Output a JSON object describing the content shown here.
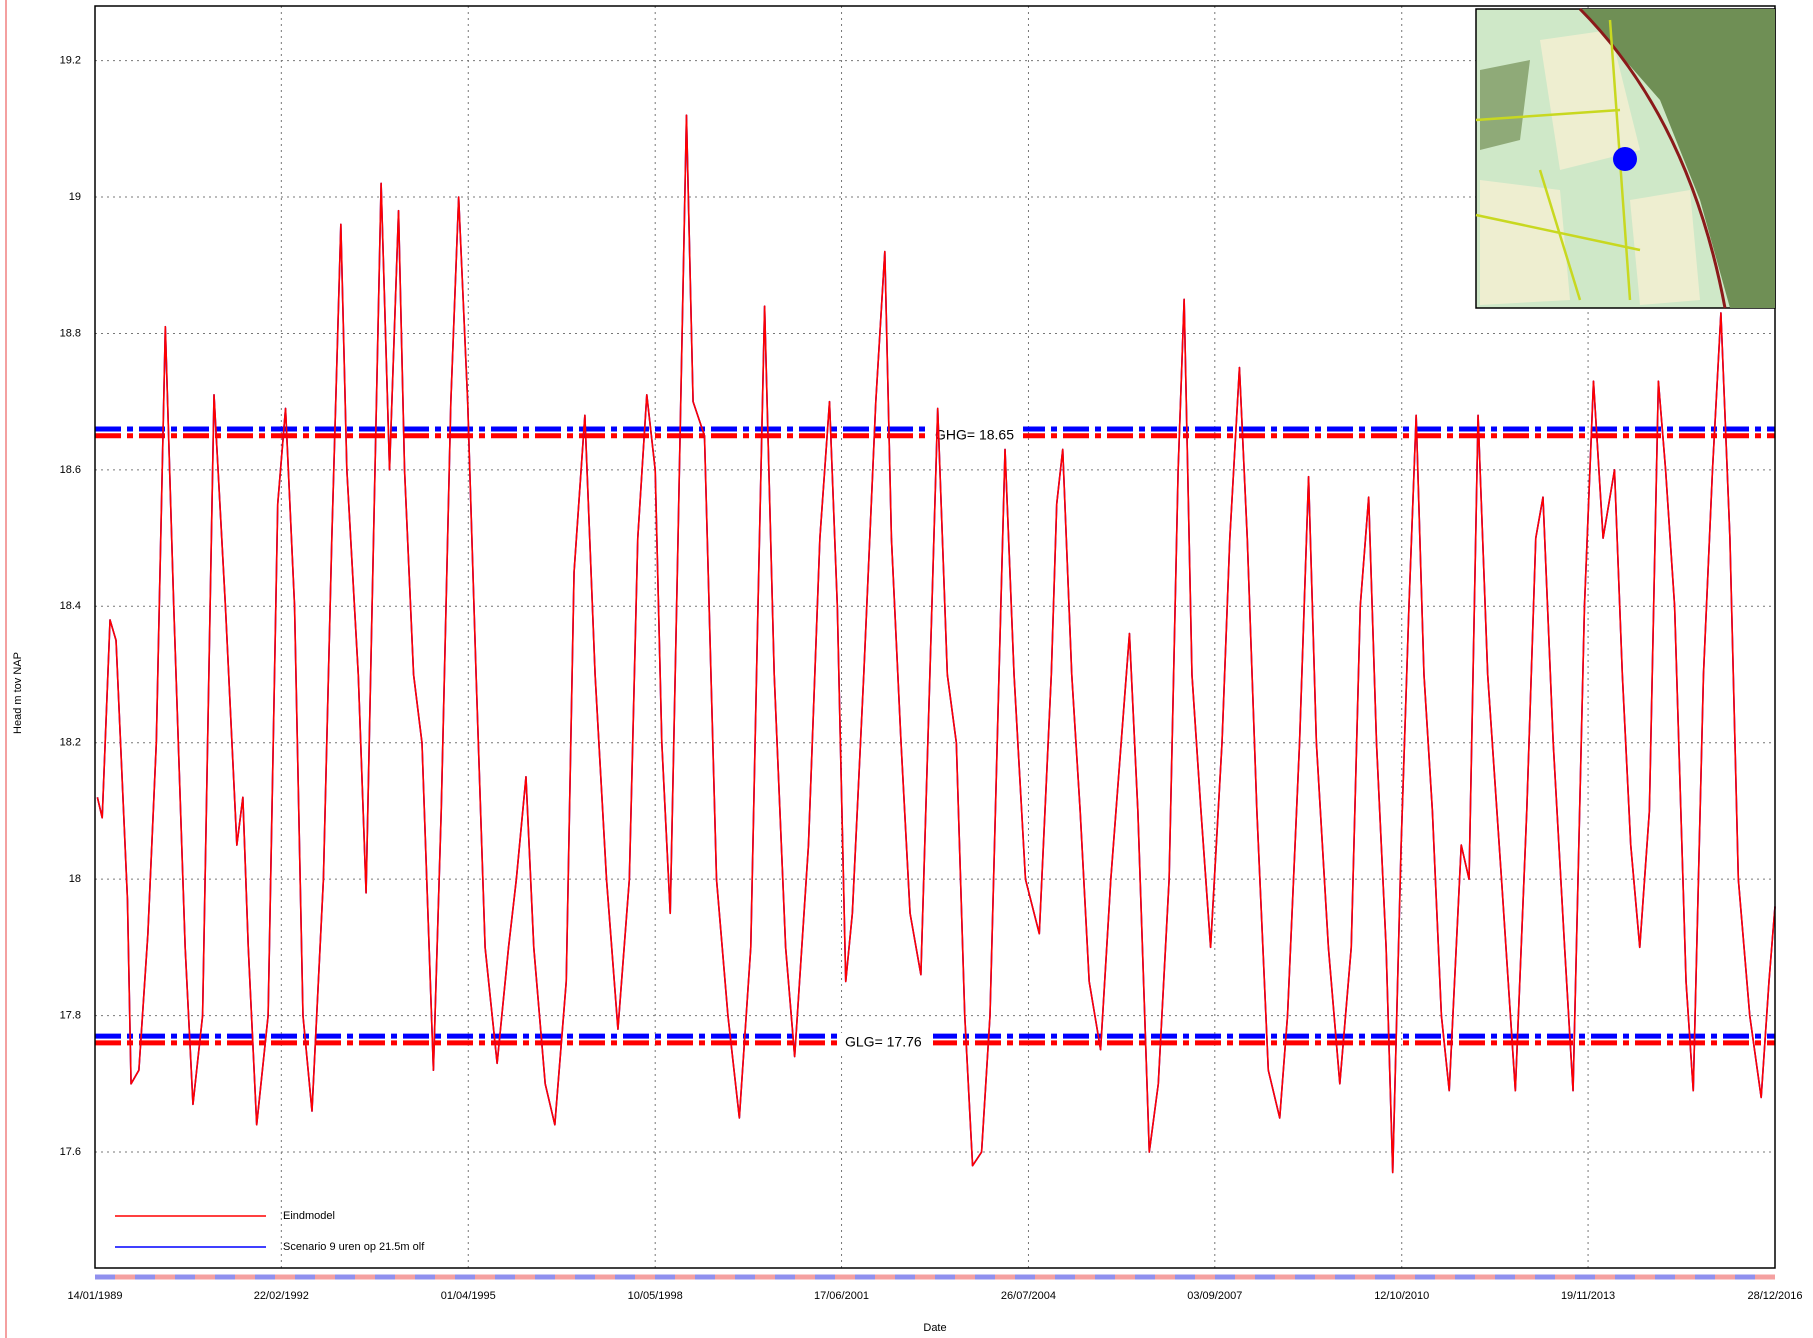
{
  "chart_data": {
    "type": "line",
    "y_label": "Head m tov NAP",
    "x_label": "Date",
    "xlim": [
      1989.04,
      2016.99
    ],
    "xticks": [
      {
        "value": 1989.04,
        "label": "14/01/1989"
      },
      {
        "value": 1992.14,
        "label": "22/02/1992"
      },
      {
        "value": 1995.25,
        "label": "01/04/1995"
      },
      {
        "value": 1998.36,
        "label": "10/05/1998"
      },
      {
        "value": 2001.46,
        "label": "17/06/2001"
      },
      {
        "value": 2004.57,
        "label": "26/07/2004"
      },
      {
        "value": 2007.67,
        "label": "03/09/2007"
      },
      {
        "value": 2010.78,
        "label": "12/10/2010"
      },
      {
        "value": 2013.88,
        "label": "19/11/2013"
      },
      {
        "value": 2016.99,
        "label": "28/12/2016"
      }
    ],
    "ylim": [
      17.43,
      19.28
    ],
    "yticks": [
      17.6,
      17.8,
      18,
      18.2,
      18.4,
      18.6,
      18.8,
      19,
      19.2
    ],
    "grid": true,
    "legend": "lower left",
    "x": [
      1989.08,
      1989.16,
      1989.29,
      1989.39,
      1989.58,
      1989.64,
      1989.77,
      1989.92,
      1990.06,
      1990.21,
      1990.35,
      1990.54,
      1990.67,
      1990.83,
      1991.02,
      1991.21,
      1991.4,
      1991.5,
      1991.59,
      1991.73,
      1991.92,
      1992.08,
      1992.21,
      1992.36,
      1992.5,
      1992.65,
      1992.84,
      1992.98,
      1993.13,
      1993.23,
      1993.42,
      1993.55,
      1993.65,
      1993.8,
      1993.94,
      1994.09,
      1994.19,
      1994.34,
      1994.48,
      1994.67,
      1994.8,
      1994.96,
      1995.09,
      1995.24,
      1995.38,
      1995.53,
      1995.73,
      1995.92,
      1996.05,
      1996.21,
      1996.34,
      1996.53,
      1996.69,
      1996.88,
      1997.01,
      1997.19,
      1997.36,
      1997.55,
      1997.74,
      1997.93,
      1998.07,
      1998.22,
      1998.36,
      1998.47,
      1998.61,
      1998.74,
      1998.88,
      1998.99,
      1999.18,
      1999.38,
      1999.57,
      1999.76,
      1999.95,
      2000.07,
      2000.18,
      2000.34,
      2000.53,
      2000.68,
      2000.91,
      2001.1,
      2001.26,
      2001.39,
      2001.53,
      2001.64,
      2001.83,
      2002.03,
      2002.18,
      2002.29,
      2002.45,
      2002.6,
      2002.78,
      2002.93,
      2003.06,
      2003.22,
      2003.37,
      2003.51,
      2003.64,
      2003.79,
      2003.93,
      2004.08,
      2004.18,
      2004.33,
      2004.52,
      2004.75,
      2004.95,
      2005.04,
      2005.14,
      2005.29,
      2005.43,
      2005.58,
      2005.77,
      2005.94,
      2006.25,
      2006.39,
      2006.58,
      2006.73,
      2006.91,
      2007.06,
      2007.16,
      2007.29,
      2007.44,
      2007.6,
      2007.79,
      2007.92,
      2008.08,
      2008.21,
      2008.37,
      2008.56,
      2008.75,
      2008.88,
      2009.08,
      2009.23,
      2009.36,
      2009.56,
      2009.75,
      2009.94,
      2010.09,
      2010.23,
      2010.36,
      2010.52,
      2010.63,
      2010.77,
      2010.9,
      2011.02,
      2011.15,
      2011.29,
      2011.44,
      2011.57,
      2011.77,
      2011.9,
      2012.05,
      2012.21,
      2012.44,
      2012.67,
      2012.86,
      2013.01,
      2013.13,
      2013.3,
      2013.49,
      2013.63,
      2013.82,
      2013.97,
      2014.13,
      2014.32,
      2014.45,
      2014.59,
      2014.74,
      2014.9,
      2015.05,
      2015.17,
      2015.32,
      2015.51,
      2015.63,
      2015.8,
      2015.95,
      2016.09,
      2016.24,
      2016.38,
      2016.57,
      2016.76,
      2016.89,
      2016.99
    ],
    "series": [
      {
        "name": "Scenario 9 uren op 21.5m olf",
        "color": "#0000ff",
        "values": [
          18.12,
          18.09,
          18.38,
          18.35,
          17.97,
          17.7,
          17.72,
          17.92,
          18.2,
          18.81,
          18.4,
          17.9,
          17.67,
          17.8,
          18.71,
          18.4,
          18.05,
          18.12,
          17.9,
          17.64,
          17.8,
          18.55,
          18.69,
          18.4,
          17.8,
          17.66,
          18.0,
          18.5,
          18.96,
          18.6,
          18.3,
          17.98,
          18.4,
          19.02,
          18.6,
          18.98,
          18.6,
          18.3,
          18.2,
          17.72,
          18.1,
          18.7,
          19.0,
          18.7,
          18.3,
          17.9,
          17.73,
          17.9,
          18.0,
          18.15,
          17.9,
          17.7,
          17.64,
          17.85,
          18.45,
          18.68,
          18.3,
          18.0,
          17.78,
          18.0,
          18.5,
          18.71,
          18.6,
          18.2,
          17.95,
          18.5,
          19.12,
          18.7,
          18.65,
          18.0,
          17.8,
          17.65,
          17.9,
          18.4,
          18.84,
          18.3,
          17.9,
          17.74,
          18.05,
          18.5,
          18.7,
          18.4,
          17.85,
          17.95,
          18.3,
          18.7,
          18.92,
          18.5,
          18.2,
          17.95,
          17.86,
          18.3,
          18.69,
          18.3,
          18.2,
          17.8,
          17.58,
          17.6,
          17.8,
          18.3,
          18.63,
          18.3,
          18.0,
          17.92,
          18.3,
          18.55,
          18.63,
          18.3,
          18.1,
          17.85,
          17.75,
          18.0,
          18.36,
          18.1,
          17.6,
          17.7,
          18.0,
          18.6,
          18.85,
          18.3,
          18.1,
          17.9,
          18.2,
          18.5,
          18.75,
          18.5,
          18.1,
          17.72,
          17.65,
          17.8,
          18.2,
          18.59,
          18.2,
          17.9,
          17.7,
          17.9,
          18.4,
          18.56,
          18.2,
          17.9,
          17.57,
          18.05,
          18.4,
          18.68,
          18.3,
          18.1,
          17.8,
          17.69,
          18.05,
          18.0,
          18.68,
          18.3,
          18.0,
          17.69,
          18.1,
          18.5,
          18.56,
          18.2,
          17.9,
          17.69,
          18.4,
          18.73,
          18.5,
          18.6,
          18.3,
          18.05,
          17.9,
          18.1,
          18.73,
          18.6,
          18.4,
          17.85,
          17.69,
          18.3,
          18.6,
          18.83,
          18.5,
          18.0,
          17.8,
          17.68,
          17.85,
          17.96
        ]
      },
      {
        "name": "Eindmodel",
        "color": "#ff0000",
        "values": [
          18.12,
          18.09,
          18.38,
          18.35,
          17.97,
          17.7,
          17.72,
          17.92,
          18.2,
          18.81,
          18.4,
          17.9,
          17.67,
          17.8,
          18.71,
          18.4,
          18.05,
          18.12,
          17.9,
          17.64,
          17.8,
          18.55,
          18.69,
          18.4,
          17.8,
          17.66,
          18.0,
          18.5,
          18.96,
          18.6,
          18.3,
          17.98,
          18.4,
          19.02,
          18.6,
          18.98,
          18.6,
          18.3,
          18.2,
          17.72,
          18.1,
          18.7,
          19.0,
          18.7,
          18.3,
          17.9,
          17.73,
          17.9,
          18.0,
          18.15,
          17.9,
          17.7,
          17.64,
          17.85,
          18.45,
          18.68,
          18.3,
          18.0,
          17.78,
          18.0,
          18.5,
          18.71,
          18.6,
          18.2,
          17.95,
          18.5,
          19.12,
          18.7,
          18.65,
          18.0,
          17.8,
          17.65,
          17.9,
          18.4,
          18.84,
          18.3,
          17.9,
          17.74,
          18.05,
          18.5,
          18.7,
          18.4,
          17.85,
          17.95,
          18.3,
          18.7,
          18.92,
          18.5,
          18.2,
          17.95,
          17.86,
          18.3,
          18.69,
          18.3,
          18.2,
          17.8,
          17.58,
          17.6,
          17.8,
          18.3,
          18.63,
          18.3,
          18.0,
          17.92,
          18.3,
          18.55,
          18.63,
          18.3,
          18.1,
          17.85,
          17.75,
          18.0,
          18.36,
          18.1,
          17.6,
          17.7,
          18.0,
          18.6,
          18.85,
          18.3,
          18.1,
          17.9,
          18.2,
          18.5,
          18.75,
          18.5,
          18.1,
          17.72,
          17.65,
          17.8,
          18.2,
          18.59,
          18.2,
          17.9,
          17.7,
          17.9,
          18.4,
          18.56,
          18.2,
          17.9,
          17.57,
          18.05,
          18.4,
          18.68,
          18.3,
          18.1,
          17.8,
          17.69,
          18.05,
          18.0,
          18.68,
          18.3,
          18.0,
          17.69,
          18.1,
          18.5,
          18.56,
          18.2,
          17.9,
          17.69,
          18.4,
          18.73,
          18.5,
          18.6,
          18.3,
          18.05,
          17.9,
          18.1,
          18.73,
          18.6,
          18.4,
          17.85,
          17.69,
          18.3,
          18.6,
          18.83,
          18.5,
          18.0,
          17.8,
          17.68,
          17.85,
          17.96
        ]
      }
    ],
    "reference_lines": [
      {
        "value": 18.66,
        "color": "#0000ff"
      },
      {
        "value": 18.65,
        "color": "#ff0000",
        "label": "GHG= 18.65"
      },
      {
        "value": 17.77,
        "color": "#0000ff"
      },
      {
        "value": 17.76,
        "color": "#ff0000",
        "label": "GLG= 17.76"
      }
    ]
  }
}
